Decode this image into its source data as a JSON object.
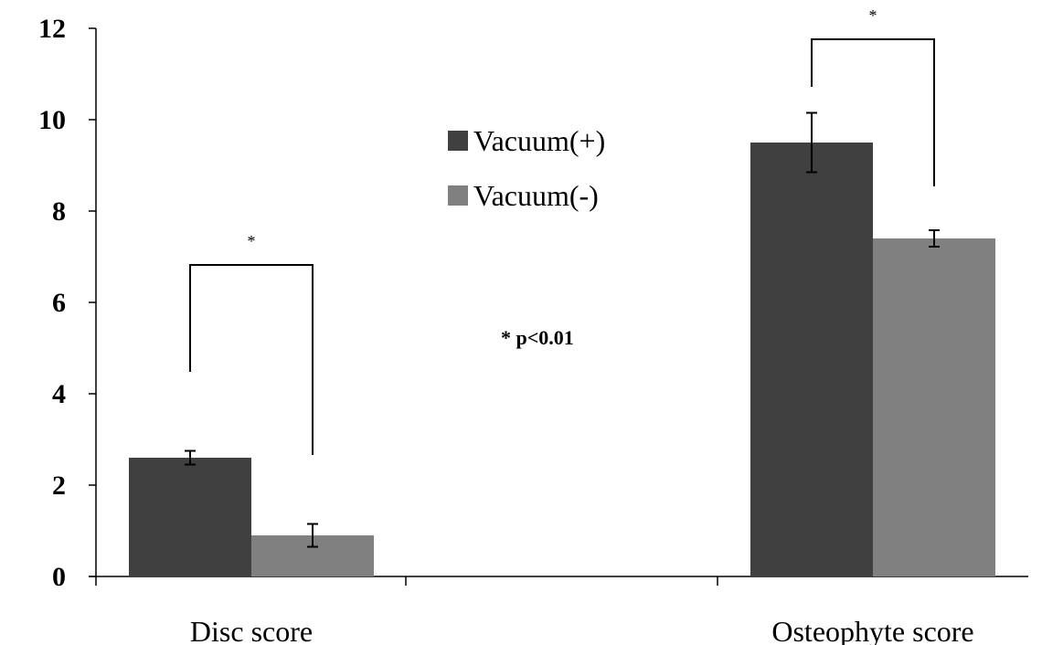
{
  "chart_data": {
    "type": "bar",
    "categories": [
      "Disc score",
      "Osteophyte score"
    ],
    "series": [
      {
        "name": "Vacuum(+)",
        "values": [
          2.6,
          9.5
        ],
        "errors": [
          0.15,
          0.65
        ]
      },
      {
        "name": "Vacuum(-)",
        "values": [
          0.9,
          7.4
        ],
        "errors": [
          0.25,
          0.18
        ]
      }
    ],
    "ylim": [
      0,
      12
    ],
    "yticks": [
      "0",
      "2",
      "4",
      "6",
      "8",
      "10",
      "12"
    ],
    "grid": false,
    "legend_position": "top-center",
    "significance_markers": [
      "*",
      "*"
    ],
    "annotation": "* p<0.01",
    "colors": {
      "vacuum_plus": "#404040",
      "vacuum_minus": "#808080"
    }
  }
}
